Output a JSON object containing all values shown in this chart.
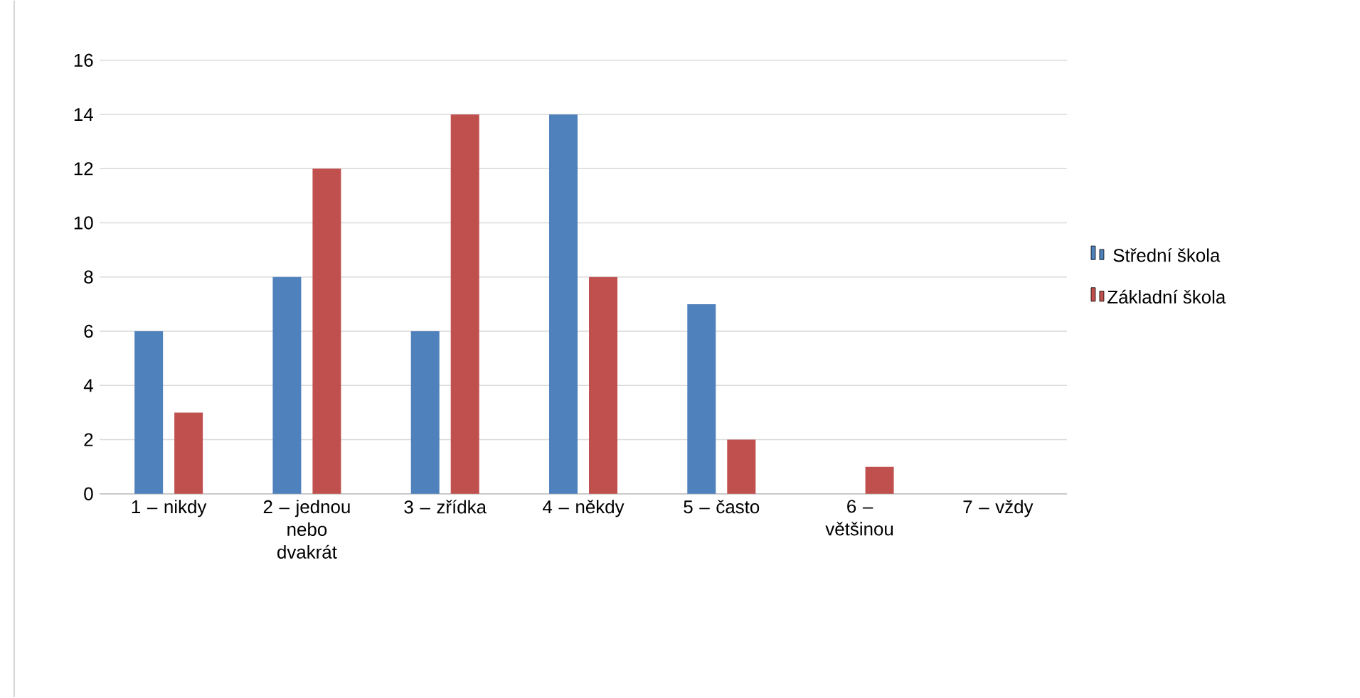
{
  "chart_data": {
    "type": "bar",
    "categories": [
      "1 – nikdy",
      "2 – jednou nebo dvakrát",
      "3 – zřídka",
      "4 – někdy",
      "5 – často",
      "6 – většinou",
      "7 – vždy"
    ],
    "series": [
      {
        "name": "Střední škola",
        "color": "#4f81bd",
        "values": [
          6,
          8,
          6,
          14,
          7,
          0,
          0
        ]
      },
      {
        "name": "Základní škola",
        "color": "#c0504d",
        "values": [
          3,
          12,
          14,
          8,
          2,
          1,
          0
        ]
      }
    ],
    "ylim": [
      0,
      16
    ],
    "yticks": [
      0,
      2,
      4,
      6,
      8,
      10,
      12,
      14,
      16
    ],
    "grid": "y",
    "legend": "right"
  }
}
